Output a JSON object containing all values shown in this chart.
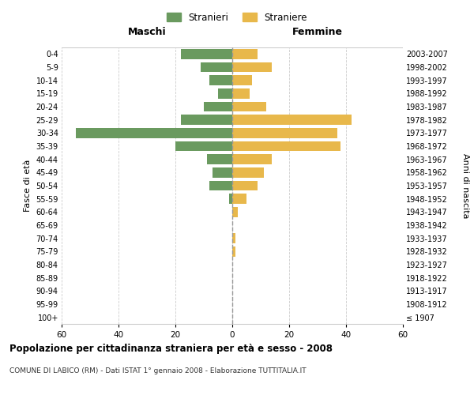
{
  "age_groups": [
    "100+",
    "95-99",
    "90-94",
    "85-89",
    "80-84",
    "75-79",
    "70-74",
    "65-69",
    "60-64",
    "55-59",
    "50-54",
    "45-49",
    "40-44",
    "35-39",
    "30-34",
    "25-29",
    "20-24",
    "15-19",
    "10-14",
    "5-9",
    "0-4"
  ],
  "birth_years": [
    "≤ 1907",
    "1908-1912",
    "1913-1917",
    "1918-1922",
    "1923-1927",
    "1928-1932",
    "1933-1937",
    "1938-1942",
    "1943-1947",
    "1948-1952",
    "1953-1957",
    "1958-1962",
    "1963-1967",
    "1968-1972",
    "1973-1977",
    "1978-1982",
    "1983-1987",
    "1988-1992",
    "1993-1997",
    "1998-2002",
    "2003-2007"
  ],
  "males": [
    0,
    0,
    0,
    0,
    0,
    0,
    0,
    0,
    0,
    1,
    8,
    7,
    9,
    20,
    55,
    18,
    10,
    5,
    8,
    11,
    18
  ],
  "females": [
    0,
    0,
    0,
    0,
    0,
    1,
    1,
    0,
    2,
    5,
    9,
    11,
    14,
    38,
    37,
    42,
    12,
    6,
    7,
    14,
    9
  ],
  "male_color": "#6a9a5f",
  "female_color": "#e8b84b",
  "background_color": "#ffffff",
  "grid_color": "#cccccc",
  "dashed_line_color": "#999999",
  "xlim": 60,
  "title": "Popolazione per cittadinanza straniera per età e sesso - 2008",
  "subtitle": "COMUNE DI LABICO (RM) - Dati ISTAT 1° gennaio 2008 - Elaborazione TUTTITALIA.IT",
  "ylabel_left": "Fasce di età",
  "ylabel_right": "Anni di nascita",
  "header_left": "Maschi",
  "header_right": "Femmine",
  "legend_males": "Stranieri",
  "legend_females": "Straniere"
}
